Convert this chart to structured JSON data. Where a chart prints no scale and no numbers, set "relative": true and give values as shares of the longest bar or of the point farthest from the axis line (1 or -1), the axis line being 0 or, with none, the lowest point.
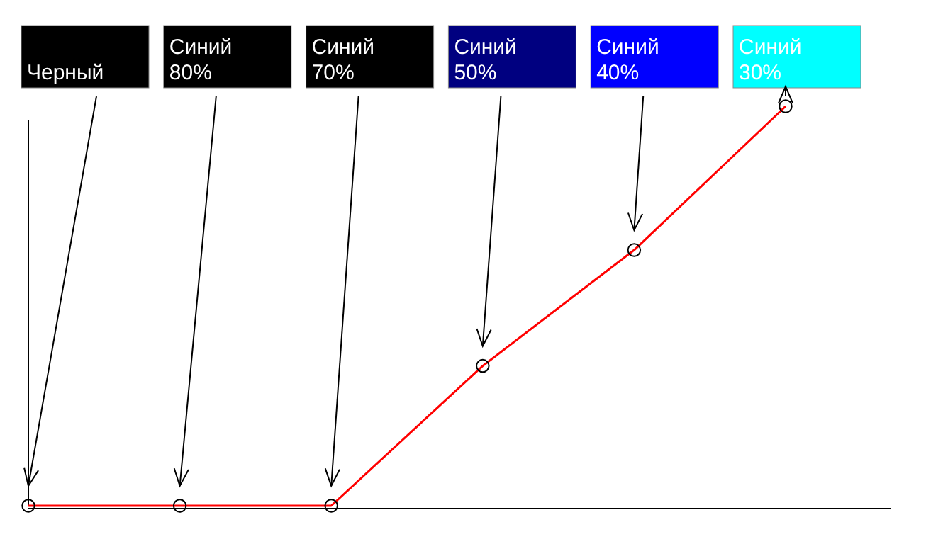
{
  "chart_data": {
    "type": "line",
    "relative": true,
    "marker": "circle",
    "categories": [
      null,
      null,
      null,
      null,
      null,
      null
    ],
    "annotations": [
      "Черный",
      "Синий 80%",
      "Синий 70%",
      "Синий 50%",
      "Синий 40%",
      "Синий 30%"
    ],
    "colors": [
      "#000000",
      "#000000",
      "#000000",
      "#000080",
      "#0000ff",
      "#00ffff"
    ],
    "series": [
      {
        "color": "#ff0000",
        "values": [
          0,
          0,
          0,
          0.35,
          0.64,
          1
        ]
      }
    ]
  }
}
